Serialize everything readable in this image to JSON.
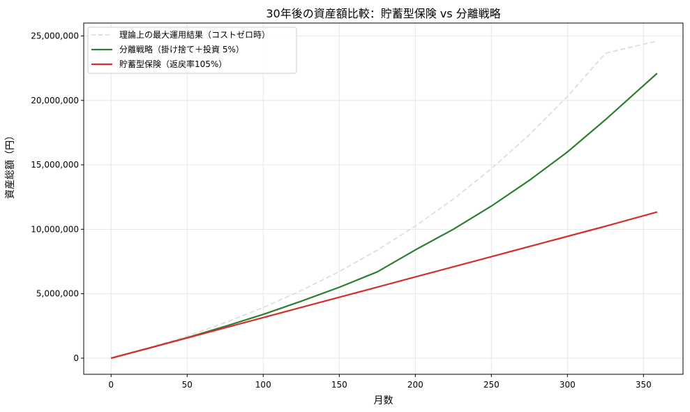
{
  "chart_data": {
    "type": "line",
    "title": "30年後の資産額比較：貯蓄型保険 vs 分離戦略",
    "xlabel": "月数",
    "ylabel": "資産総額（円）",
    "xlim": [
      -18,
      376
    ],
    "ylim": [
      -1250000,
      26000000
    ],
    "xticks": [
      0,
      50,
      100,
      150,
      200,
      250,
      300,
      350
    ],
    "yticks": [
      0,
      5000000,
      10000000,
      15000000,
      20000000,
      25000000
    ],
    "ytick_labels": [
      "0",
      "5,000,000",
      "10,000,000",
      "15,000,000",
      "20,000,000",
      "25,000,000"
    ],
    "grid": true,
    "legend_position": "upper left",
    "x": [
      0,
      25,
      50,
      75,
      100,
      125,
      150,
      175,
      200,
      225,
      250,
      275,
      300,
      325,
      359
    ],
    "series": [
      {
        "name": "理論上の最大運用結果（コストゼロ時）",
        "color": "#dddddd",
        "style": "dashed",
        "values": [
          0,
          810000,
          1720000,
          2760000,
          3930000,
          5250000,
          6720000,
          8380000,
          10250000,
          12340000,
          14700000,
          17340000,
          20300000,
          23660000,
          24600000
        ]
      },
      {
        "name": "分離戦略（掛け捨て＋投資 5%）",
        "color": "#2e7d32",
        "style": "solid",
        "values": [
          0,
          780000,
          1590000,
          2470000,
          3400000,
          4420000,
          5500000,
          6700000,
          8400000,
          10000000,
          11800000,
          13800000,
          16000000,
          18500000,
          22100000
        ]
      },
      {
        "name": "貯蓄型保険（返戻率105%）",
        "color": "#d32f2f",
        "style": "solid",
        "values": [
          0,
          787500,
          1575000,
          2362500,
          3150000,
          3937500,
          4725000,
          5512500,
          6300000,
          7087500,
          7875000,
          8662500,
          9450000,
          10237500,
          11340000
        ]
      }
    ]
  }
}
